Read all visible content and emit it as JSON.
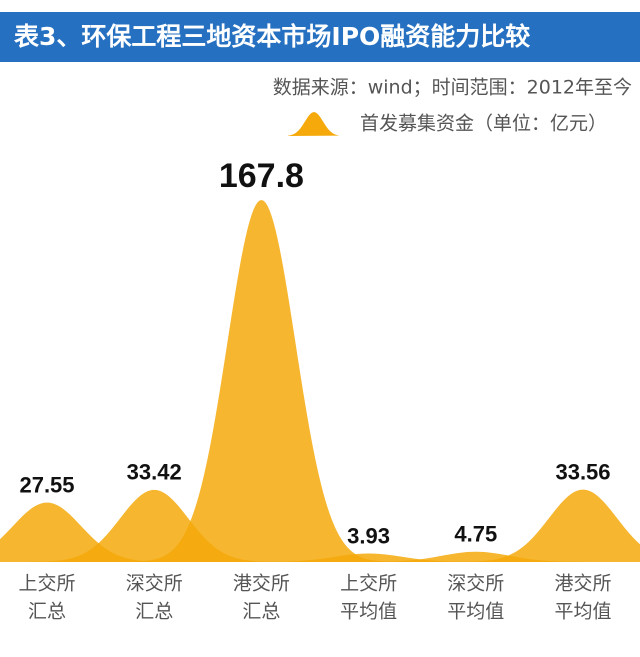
{
  "chart_data": {
    "type": "area",
    "title": "表3、环保工程三地资本市场IPO融资能力比较",
    "subtitle": "数据来源：wind；时间范围：2012年至今",
    "categories": [
      [
        "上交所",
        "汇总"
      ],
      [
        "深交所",
        "汇总"
      ],
      [
        "港交所",
        "汇总"
      ],
      [
        "上交所",
        "平均值"
      ],
      [
        "深交所",
        "平均值"
      ],
      [
        "港交所",
        "平均值"
      ]
    ],
    "series": [
      {
        "name": "首发募集资金（单位：亿元）",
        "color": "#f5a90a",
        "values": [
          27.55,
          33.42,
          167.8,
          3.93,
          4.75,
          33.56
        ]
      }
    ]
  }
}
